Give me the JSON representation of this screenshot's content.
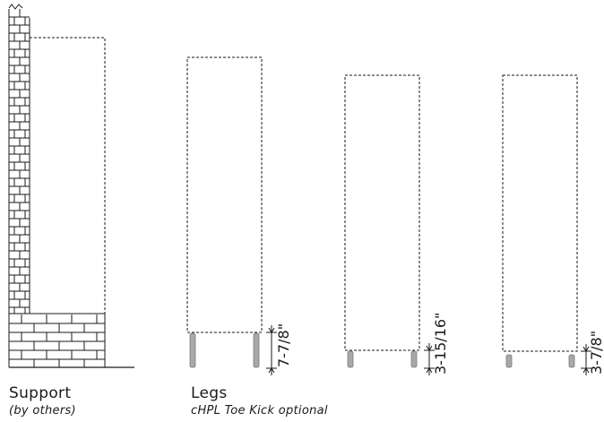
{
  "captions": {
    "support": {
      "title": "Support",
      "subtitle": "(by others)"
    },
    "legs": {
      "title": "Legs",
      "subtitle": "cHPL Toe Kick optional"
    }
  },
  "dimensions": {
    "legs_height": "7-7/8\"",
    "leveler_height": "3-15/16\"",
    "glide_height": "3-7/8\""
  },
  "colors": {
    "line": "#1a1a1a",
    "leg_fill": "#a8a8a8",
    "leg_stroke": "#7a7a7a"
  }
}
